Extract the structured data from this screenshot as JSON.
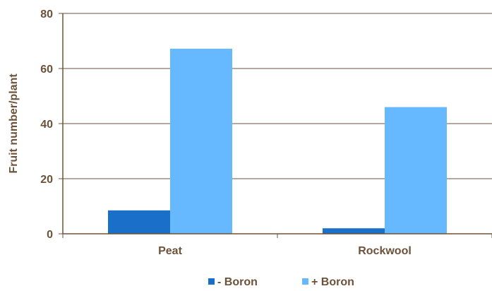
{
  "colors": {
    "axis_text": "#6b5238",
    "axis_line": "#6b5238",
    "grid": "#6b5238",
    "series_minus": "#1a6fc9",
    "series_plus": "#66b8ff"
  },
  "chart_data": {
    "type": "bar",
    "title": "",
    "xlabel": "",
    "ylabel": "Fruit number/plant",
    "categories": [
      "Peat",
      "Rockwool"
    ],
    "series": [
      {
        "name": "- Boron",
        "values": [
          8.5,
          2.0
        ]
      },
      {
        "name": "+ Boron",
        "values": [
          67.2,
          46.0
        ]
      }
    ],
    "ylim": [
      0,
      80
    ],
    "yticks": [
      0,
      20,
      40,
      60,
      80
    ],
    "ytick_labels": [
      "0",
      "20",
      "40",
      "60",
      "80"
    ],
    "grid": true,
    "legend_position": "bottom"
  }
}
